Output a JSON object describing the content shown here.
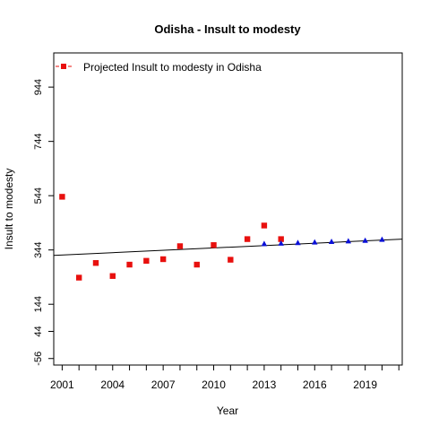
{
  "chart_data": {
    "type": "scatter",
    "title": "Odisha  -  Insult to modesty",
    "xlabel": "Year",
    "ylabel": "Insult to modesty",
    "xlim": [
      2000.5,
      2021.2
    ],
    "ylim": [
      -80,
      1070
    ],
    "x_ticks": [
      2001,
      2004,
      2007,
      2010,
      2013,
      2016,
      2019
    ],
    "y_ticks": [
      -56,
      44,
      144,
      344,
      544,
      744,
      944
    ],
    "legend": {
      "label": "Projected  Insult to modesty  in  Odisha",
      "position": "top-left"
    },
    "colors": {
      "actual": "#e8100e",
      "projected": "#0a10d8",
      "trend": "#000000"
    },
    "series": [
      {
        "marker": "square",
        "color": "#e8100e",
        "x": [
          2001,
          2002,
          2003,
          2004,
          2005,
          2006,
          2007,
          2008,
          2009,
          2010,
          2011,
          2012,
          2013,
          2014
        ],
        "y": [
          540,
          242,
          296,
          248,
          290,
          304,
          310,
          358,
          290,
          362,
          308,
          384,
          434,
          384
        ]
      },
      {
        "marker": "triangle",
        "color": "#0a10d8",
        "x": [
          2013,
          2014,
          2015,
          2016,
          2017,
          2018,
          2019,
          2020
        ],
        "y": [
          366,
          368,
          370,
          372,
          374,
          376,
          378,
          382
        ]
      }
    ],
    "trend_line": {
      "x": [
        2000.5,
        2021.2
      ],
      "y": [
        324,
        384
      ]
    }
  }
}
